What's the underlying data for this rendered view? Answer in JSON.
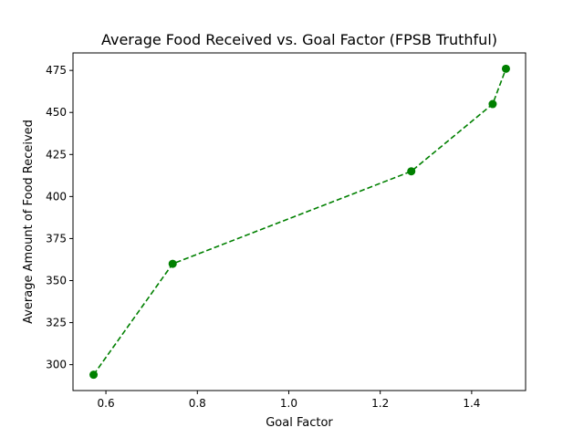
{
  "chart_data": {
    "type": "line",
    "title": "Average Food Received vs. Goal Factor (FPSB Truthful)",
    "xlabel": "Goal Factor",
    "ylabel": "Average Amount of Food Received",
    "xlim": [
      0.528,
      1.518
    ],
    "ylim": [
      284.6,
      485.4
    ],
    "xticks": [
      {
        "value": 0.6,
        "label": "0.6"
      },
      {
        "value": 0.8,
        "label": "0.8"
      },
      {
        "value": 1.0,
        "label": "1.0"
      },
      {
        "value": 1.2,
        "label": "1.2"
      },
      {
        "value": 1.4,
        "label": "1.4"
      }
    ],
    "yticks": [
      {
        "value": 300,
        "label": "300"
      },
      {
        "value": 325,
        "label": "325"
      },
      {
        "value": 350,
        "label": "350"
      },
      {
        "value": 375,
        "label": "375"
      },
      {
        "value": 400,
        "label": "400"
      },
      {
        "value": 425,
        "label": "425"
      },
      {
        "value": 450,
        "label": "450"
      },
      {
        "value": 475,
        "label": "475"
      }
    ],
    "grid": false,
    "legend": "none",
    "series": [
      {
        "x": [
          0.573,
          0.746,
          1.268,
          1.446,
          1.475
        ],
        "y": [
          294,
          360,
          415,
          455,
          476
        ],
        "color": "#008000",
        "line_style": "dashed",
        "marker": "circle"
      }
    ]
  }
}
